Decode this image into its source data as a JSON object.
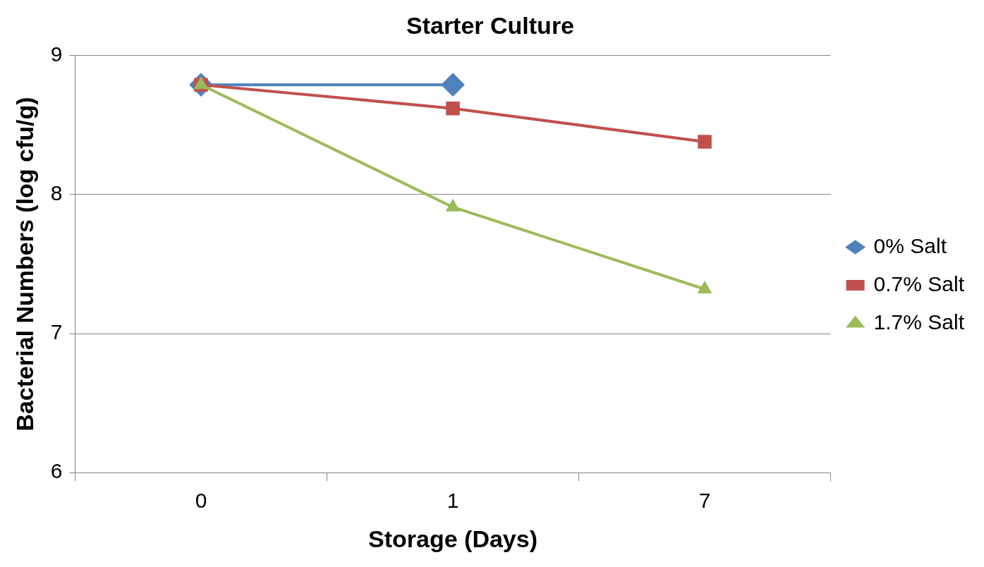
{
  "chart_data": {
    "type": "line",
    "title": "Starter Culture",
    "xlabel": "Storage (Days)",
    "ylabel": "Bacterial Numbers (log cfu/g)",
    "categories": [
      "0",
      "1",
      "7"
    ],
    "series": [
      {
        "name": "0% Salt",
        "color": "#4f81bd",
        "marker": "diamond",
        "values": [
          8.79,
          8.79,
          null
        ]
      },
      {
        "name": "0.7% Salt",
        "color": "#c0504d",
        "marker": "square",
        "values": [
          8.79,
          8.62,
          8.38
        ]
      },
      {
        "name": "1.7% Salt",
        "color": "#9bbb59",
        "marker": "triangle",
        "values": [
          8.79,
          7.91,
          7.32
        ]
      }
    ],
    "ylim": [
      6,
      9
    ],
    "yticks": [
      6,
      7,
      8,
      9
    ],
    "grid": "y",
    "legend": "right",
    "line_style": "solid"
  }
}
